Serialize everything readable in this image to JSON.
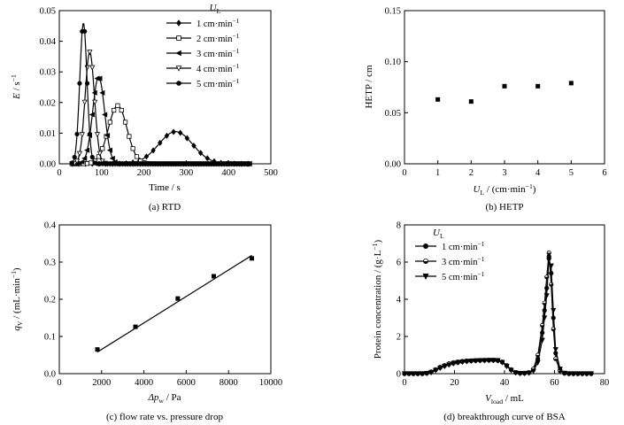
{
  "chart_data": [
    {
      "type": "line",
      "panel_caption": "(a) RTD",
      "xlabel": "Time / s",
      "ylabel": "E / s",
      "ylabel_sup": "−1",
      "xlim": [
        0,
        500
      ],
      "ylim": [
        0,
        0.05
      ],
      "xticks": [
        "0",
        "100",
        "200",
        "300",
        "400",
        "500"
      ],
      "yticks": [
        "0.00",
        "0.01",
        "0.02",
        "0.03",
        "0.04",
        "0.05"
      ],
      "legend_title": "U",
      "legend_title_sub": "L",
      "legend_position": "top-right",
      "series": [
        {
          "name": "1 cm·min",
          "name_sup": "−1",
          "marker": "diamond",
          "mu": 275,
          "sigma": 40,
          "peak": 0.0105
        },
        {
          "name": "2 cm·min",
          "name_sup": "−1",
          "marker": "square-open",
          "mu": 138,
          "sigma": 22,
          "peak": 0.019
        },
        {
          "name": "3 cm·min",
          "name_sup": "−1",
          "marker": "tri-left",
          "mu": 93,
          "sigma": 14,
          "peak": 0.0285
        },
        {
          "name": "4 cm·min",
          "name_sup": "−1",
          "marker": "tri-down-open",
          "mu": 72,
          "sigma": 11,
          "peak": 0.0365
        },
        {
          "name": "5 cm·min",
          "name_sup": "−1",
          "marker": "circle",
          "mu": 57,
          "sigma": 8.5,
          "peak": 0.046
        }
      ]
    },
    {
      "type": "scatter",
      "panel_caption": "(b) HETP",
      "xlabel": "U",
      "xlabel_sub": "L",
      "xlabel_rest": " / (cm·min",
      "xlabel_sup": "−1",
      "xlabel_end": ")",
      "ylabel": "HETP / cm",
      "xlim": [
        0,
        6
      ],
      "ylim": [
        0,
        0.15
      ],
      "xticks": [
        "0",
        "1",
        "2",
        "3",
        "4",
        "5",
        "6"
      ],
      "yticks": [
        "0.00",
        "0.05",
        "0.10",
        "0.15"
      ],
      "points": [
        {
          "x": 1,
          "y": 0.063
        },
        {
          "x": 2,
          "y": 0.061
        },
        {
          "x": 3,
          "y": 0.076
        },
        {
          "x": 4,
          "y": 0.076
        },
        {
          "x": 5,
          "y": 0.079
        }
      ]
    },
    {
      "type": "scatter",
      "panel_caption": "(c) flow rate vs. pressure drop",
      "xlabel": "Δp",
      "xlabel_sub": "w",
      "xlabel_rest": " / Pa",
      "ylabel": "q",
      "ylabel_sub": "V",
      "ylabel_rest": " / (mL·min",
      "ylabel_sup": "−1",
      "ylabel_end": ")",
      "xlim": [
        0,
        10000
      ],
      "ylim": [
        0,
        0.4
      ],
      "xticks": [
        "0",
        "2000",
        "4000",
        "6000",
        "8000",
        "10000"
      ],
      "yticks": [
        "0.0",
        "0.1",
        "0.2",
        "0.3",
        "0.4"
      ],
      "points": [
        {
          "x": 1800,
          "y": 0.065
        },
        {
          "x": 3600,
          "y": 0.126
        },
        {
          "x": 5600,
          "y": 0.202
        },
        {
          "x": 7300,
          "y": 0.262
        },
        {
          "x": 9100,
          "y": 0.31
        }
      ],
      "fit_line": {
        "x": [
          1800,
          9100
        ],
        "y": [
          0.058,
          0.318
        ]
      }
    },
    {
      "type": "line",
      "panel_caption": "(d) breakthrough curve of BSA",
      "xlabel": "V",
      "xlabel_sub": "load",
      "xlabel_rest": " / mL",
      "ylabel": "Protein concentration / (g·L",
      "ylabel_sup": "−1",
      "ylabel_end": ")",
      "xlim": [
        0,
        90
      ],
      "ylim": [
        0,
        8
      ],
      "xticks": [
        "0",
        "20",
        "40",
        "60",
        "80"
      ],
      "yticks": [
        "0",
        "2",
        "4",
        "6",
        "8"
      ],
      "legend_title": "U",
      "legend_title_sub": "L",
      "legend_position": "top-left",
      "series": [
        {
          "name": "1 cm·min",
          "name_sup": "−1",
          "marker": "circle",
          "x": [
            0,
            2,
            4,
            6,
            8,
            10,
            12,
            14,
            16,
            18,
            20,
            22,
            24,
            26,
            28,
            30,
            32,
            34,
            36,
            38,
            40,
            42,
            44,
            46,
            48,
            50,
            52,
            54,
            56,
            58,
            60,
            62,
            63,
            64,
            65,
            66,
            67,
            68,
            70,
            72,
            74,
            76,
            78,
            80,
            82,
            84
          ],
          "y": [
            0,
            0,
            0,
            0,
            0,
            0.02,
            0.08,
            0.2,
            0.32,
            0.42,
            0.5,
            0.56,
            0.6,
            0.64,
            0.67,
            0.69,
            0.7,
            0.71,
            0.72,
            0.72,
            0.72,
            0.7,
            0.62,
            0.42,
            0.2,
            0.06,
            0.02,
            0.02,
            0.05,
            0.2,
            0.8,
            2.2,
            3.4,
            4.6,
            6.3,
            5.4,
            3.0,
            1.1,
            0.2,
            0.02,
            0,
            0,
            0,
            0,
            0,
            0
          ]
        },
        {
          "name": "3 cm·min",
          "name_sup": "−1",
          "marker": "circle-half",
          "x": [
            0,
            2,
            4,
            6,
            8,
            10,
            12,
            14,
            16,
            18,
            20,
            22,
            24,
            26,
            28,
            30,
            32,
            34,
            36,
            38,
            40,
            42,
            44,
            46,
            48,
            50,
            52,
            54,
            56,
            58,
            60,
            62,
            63,
            64,
            65,
            66,
            67,
            68,
            70,
            72,
            74,
            76,
            78,
            80,
            82,
            84
          ],
          "y": [
            0,
            0,
            0,
            0,
            0,
            0.03,
            0.1,
            0.22,
            0.35,
            0.45,
            0.54,
            0.6,
            0.64,
            0.67,
            0.69,
            0.7,
            0.71,
            0.72,
            0.73,
            0.73,
            0.73,
            0.72,
            0.64,
            0.45,
            0.22,
            0.07,
            0.03,
            0.03,
            0.06,
            0.25,
            1.0,
            2.6,
            3.8,
            5.2,
            6.5,
            4.8,
            2.4,
            0.8,
            0.15,
            0.02,
            0,
            0,
            0,
            0,
            0,
            0
          ]
        },
        {
          "name": "5 cm·min",
          "name_sup": "−1",
          "marker": "tri-down",
          "x": [
            0,
            2,
            4,
            6,
            8,
            10,
            12,
            14,
            16,
            18,
            20,
            22,
            24,
            26,
            28,
            30,
            32,
            34,
            36,
            38,
            40,
            42,
            44,
            46,
            48,
            50,
            52,
            54,
            56,
            58,
            60,
            62,
            63,
            64,
            65,
            66,
            67,
            68,
            70,
            72,
            74,
            76,
            78,
            80,
            82,
            84
          ],
          "y": [
            0,
            0,
            0,
            0,
            0,
            0.02,
            0.07,
            0.18,
            0.3,
            0.4,
            0.48,
            0.55,
            0.6,
            0.63,
            0.66,
            0.68,
            0.7,
            0.71,
            0.71,
            0.72,
            0.72,
            0.71,
            0.6,
            0.4,
            0.18,
            0.05,
            0.02,
            0.02,
            0.04,
            0.15,
            0.6,
            1.8,
            3.0,
            4.2,
            6.1,
            5.8,
            3.4,
            1.3,
            0.25,
            0.03,
            0,
            0,
            0,
            0,
            0,
            0
          ]
        }
      ]
    }
  ]
}
